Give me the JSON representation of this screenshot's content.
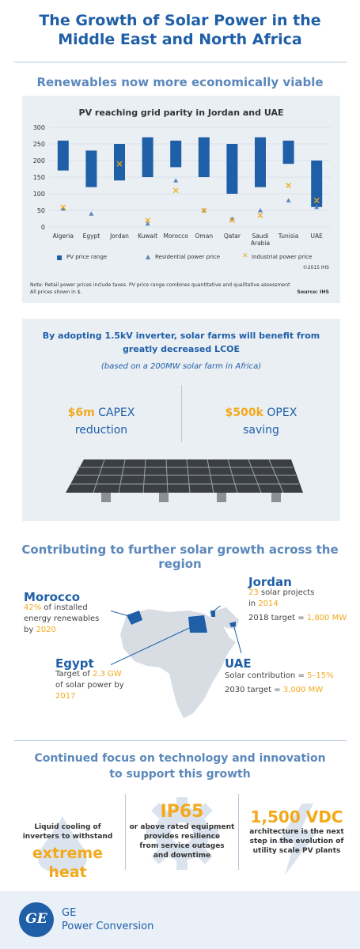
{
  "header": {
    "title_line1": "The Growth of Solar Power in the",
    "title_line2": "Middle East and North Africa"
  },
  "section1": {
    "heading": "Renewables now more economically viable"
  },
  "chart_data": {
    "type": "bar",
    "title": "PV reaching grid parity in Jordan and UAE",
    "categories": [
      "Algeria",
      "Egypt",
      "Jordan",
      "Kuwait",
      "Morocco",
      "Oman",
      "Qatar",
      "Saudi Arabia",
      "Tunisia",
      "UAE"
    ],
    "ylim": [
      0,
      300
    ],
    "yticks": [
      0,
      50,
      100,
      150,
      200,
      250,
      300
    ],
    "series": [
      {
        "name": "PV price range",
        "type": "range",
        "color": "#1f5fa8",
        "low": [
          170,
          120,
          140,
          150,
          180,
          150,
          100,
          120,
          190,
          60
        ],
        "high": [
          260,
          230,
          250,
          270,
          260,
          270,
          250,
          270,
          260,
          200
        ]
      },
      {
        "name": "Residential power price",
        "type": "triangle",
        "color": "#5b88bb",
        "values": [
          55,
          40,
          null,
          10,
          140,
          50,
          25,
          50,
          80,
          60
        ]
      },
      {
        "name": "Industrial power price",
        "type": "x",
        "color": "#f2a91c",
        "values": [
          60,
          null,
          190,
          20,
          110,
          50,
          20,
          35,
          125,
          80
        ]
      }
    ],
    "copyright": "©2015 IHS",
    "note_line1": "Note: Retail power prices include taxes. PV price range combines quantitative and qualitative assessment",
    "note_line2": "All prices shown in $.",
    "source": "Source: IHS"
  },
  "section2": {
    "heading_line1": "By adopting 1.5kV inverter, solar farms will benefit from",
    "heading_line2": "greatly decreased LCOE",
    "subheading": "(based on a 200MW solar farm in Africa)",
    "capex_value": "$6m",
    "capex_label": "CAPEX",
    "capex_line2": "reduction",
    "opex_value": "$500k",
    "opex_label": "OPEX",
    "opex_line2": "saving"
  },
  "section3": {
    "heading": "Contributing to further solar growth across the region",
    "morocco": {
      "title": "Morocco",
      "pct": "42%",
      "line1": " of installed",
      "line2": "energy renewables",
      "line3_pre": "by ",
      "year": "2020"
    },
    "jordan": {
      "title": "Jordan",
      "count": "23",
      "line1": " solar projects",
      "line2_pre": "in ",
      "year": "2014",
      "target_pre": "2018 target = ",
      "target": "1,800 MW"
    },
    "egypt": {
      "title": "Egypt",
      "line1_pre": "Target of ",
      "gw": "2.3 GW",
      "line2": "of solar power by",
      "year": "2017"
    },
    "uae": {
      "title": "UAE",
      "contrib_pre": "Solar contribution = ",
      "contrib": "5–15%",
      "target_pre": "2030 target = ",
      "target": "3,000 MW"
    }
  },
  "section4": {
    "heading_line1": "Continued focus on technology and innovation",
    "heading_line2": "to support this growth",
    "col1_line1": "Liquid cooling of",
    "col1_line2": "inverters to withstand",
    "col1_big": "extreme heat",
    "col2_big": "IP65",
    "col2_line1": "or above rated equipment",
    "col2_line2": "provides resilience",
    "col2_line3": "from service outages",
    "col2_line4": "and downtime",
    "col3_big": "1,500 VDC",
    "col3_line1": "architecture is the next",
    "col3_line2": "step in the evolution of",
    "col3_line3": "utility scale PV plants"
  },
  "footer": {
    "logo_text": "GE",
    "brand_line1": "GE",
    "brand_line2": "Power Conversion"
  }
}
